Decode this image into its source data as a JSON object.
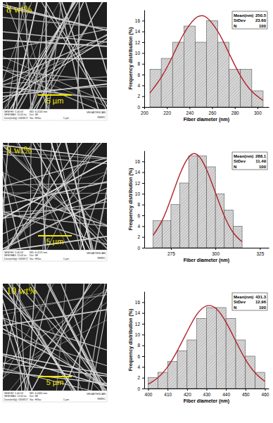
{
  "chart_data": [
    {
      "type": "histogram",
      "x_label": "Fiber diameter (nm)",
      "y_label": "Frequency distribution (%)",
      "bins": [
        205,
        215,
        225,
        235,
        245,
        255,
        265,
        275,
        285,
        295,
        305
      ],
      "values": [
        7,
        9,
        12,
        15,
        12,
        16,
        12,
        7,
        7,
        3
      ],
      "color": "#d9d9d9",
      "xlim": [
        200,
        310
      ],
      "xticks": [
        200,
        220,
        240,
        260,
        280,
        300
      ],
      "ylim": [
        0,
        18
      ],
      "yticks": [
        0,
        2,
        4,
        6,
        8,
        10,
        12,
        14,
        16
      ],
      "fit": {
        "color": "#b0222a",
        "x": [
          205,
          215,
          225,
          235,
          245,
          250,
          255,
          265,
          275,
          285,
          295,
          305
        ],
        "values": [
          2.6,
          5.5,
          9.4,
          13.6,
          16.4,
          16.9,
          16.6,
          14.0,
          9.9,
          5.8,
          2.9,
          1.2
        ]
      },
      "stats": {
        "labels": [
          "Mean(nm)",
          "StDev",
          "N"
        ],
        "values": [
          "250.5",
          "23.60",
          "100"
        ]
      }
    },
    {
      "type": "histogram",
      "x_label": "Fiber diameter (nm)",
      "y_label": "Frequency distribution (%)",
      "bins": [
        265,
        270,
        275,
        280,
        285,
        290,
        295,
        300,
        305,
        310,
        315
      ],
      "values": [
        5,
        5,
        8,
        12,
        17,
        17,
        15,
        10,
        7,
        4
      ],
      "color": "#d9d9d9",
      "xlim": [
        260,
        330
      ],
      "xticks": [
        275,
        300,
        325
      ],
      "ylim": [
        0,
        18
      ],
      "yticks": [
        0,
        2,
        4,
        6,
        8,
        10,
        12,
        14,
        16
      ],
      "fit": {
        "color": "#b0222a",
        "x": [
          265,
          270,
          275,
          280,
          285,
          290,
          295,
          300,
          305,
          310,
          315
        ],
        "values": [
          2.3,
          5.0,
          9.1,
          13.6,
          16.8,
          17.2,
          14.5,
          10.2,
          5.9,
          2.8,
          1.1
        ]
      },
      "stats": {
        "labels": [
          "Mean(nm)",
          "StDev",
          "N"
        ],
        "values": [
          "288.1",
          "11.49",
          "100"
        ]
      }
    },
    {
      "type": "histogram",
      "x_label": "Fiber diameter (nm)",
      "y_label": "Frequency distribution (%)",
      "bins": [
        400,
        405,
        410,
        415,
        420,
        425,
        430,
        435,
        440,
        445,
        450,
        455,
        460
      ],
      "values": [
        2,
        3,
        5,
        7,
        9,
        13,
        15,
        15,
        13,
        9,
        6,
        3
      ],
      "color": "#d9d9d9",
      "xlim": [
        398,
        462
      ],
      "xticks": [
        400,
        410,
        420,
        430,
        440,
        450,
        460
      ],
      "ylim": [
        0,
        18
      ],
      "yticks": [
        0,
        2,
        4,
        6,
        8,
        10,
        12,
        14,
        16
      ],
      "fit": {
        "color": "#b0222a",
        "x": [
          400,
          405,
          410,
          415,
          420,
          425,
          430,
          435,
          440,
          445,
          450,
          455,
          460
        ],
        "values": [
          0.8,
          2.0,
          4.0,
          7.0,
          10.5,
          13.7,
          15.3,
          14.8,
          12.3,
          8.8,
          5.4,
          2.9,
          1.3
        ]
      },
      "stats": {
        "labels": [
          "Mean(nm)",
          "StDev",
          "N"
        ],
        "values": [
          "431.3",
          "12.96",
          "100"
        ]
      }
    }
  ],
  "images": [
    {
      "label": "8 wt%",
      "scale_bar": "5 µm",
      "info": [
        "SEM HV: 5.00 kV",
        "WD: 6.0134 mm",
        "SEM MAG: 15.00 kx",
        "Det: SE",
        "Date(m/d/y): 03/08/17",
        "Vac: HiVac"
      ],
      "bar_scale": "5 µm",
      "brand": "VEGA\\TESCAN",
      "lab": "RMRC"
    },
    {
      "label": "9 wt%",
      "scale_bar": "5 µm",
      "info": [
        "SEM HV: 5.00 kV",
        "WD: 6.0170 mm",
        "SEM MAG: 15.00 kx",
        "Det: SE",
        "Date(m/d/y): 03/08/17",
        "Vac: HiVac"
      ],
      "bar_scale": "5 µm",
      "brand": "VEGA\\TESCAN",
      "lab": "RMRC"
    },
    {
      "label": "10 wt%",
      "scale_bar": "5 µm",
      "info": [
        "SEM HV: 5.00 kV",
        "WD: 6.0064 mm",
        "SEM MAG: 15.00 kx",
        "Det: SE",
        "Date(m/d/y): 03/08/17",
        "Vac: HiVac"
      ],
      "bar_scale": "5 µm",
      "brand": "VEGA\\TESCAN",
      "lab": "RMRC"
    }
  ]
}
